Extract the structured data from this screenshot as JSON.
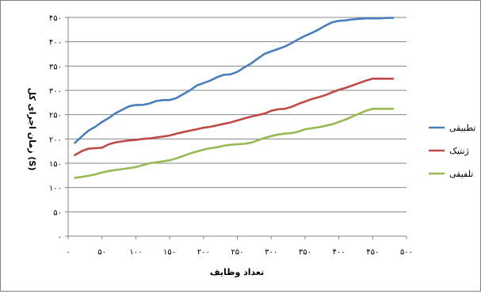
{
  "chart_data": {
    "type": "line",
    "xlabel": "تعداد وظایف",
    "ylabel": "زمان اجرای کل (S)",
    "xlim": [
      0,
      500
    ],
    "ylim": [
      0,
      450
    ],
    "x_ticks": [
      "۰",
      "۵۰",
      "۱۰۰",
      "۱۵۰",
      "۲۰۰",
      "۲۵۰",
      "۳۰۰",
      "۳۵۰",
      "۴۰۰",
      "۴۵۰",
      "۵۰۰"
    ],
    "y_ticks": [
      "۰",
      "۵۰",
      "۱۰۰",
      "۱۵۰",
      "۲۰۰",
      "۲۵۰",
      "۳۰۰",
      "۳۵۰",
      "۴۰۰",
      "۴۵۰"
    ],
    "grid": "horizontal",
    "legend": "right",
    "x": [
      10,
      20,
      30,
      40,
      50,
      60,
      70,
      80,
      90,
      100,
      110,
      120,
      130,
      140,
      150,
      160,
      170,
      180,
      190,
      200,
      210,
      220,
      230,
      240,
      250,
      260,
      270,
      280,
      290,
      300,
      310,
      320,
      330,
      340,
      350,
      360,
      370,
      380,
      390,
      400,
      410,
      420,
      430,
      440,
      450,
      460,
      470,
      480
    ],
    "series": [
      {
        "name": "تطبیقی",
        "color": "#4a7ebb",
        "values": [
          192,
          205,
          217,
          225,
          235,
          243,
          253,
          260,
          267,
          270,
          270,
          273,
          278,
          280,
          280,
          284,
          292,
          300,
          310,
          315,
          320,
          327,
          332,
          333,
          338,
          347,
          355,
          365,
          375,
          380,
          385,
          390,
          397,
          405,
          412,
          418,
          425,
          433,
          440,
          443,
          444,
          446,
          447,
          448,
          448,
          448,
          449,
          449
        ]
      },
      {
        "name": "ژنتیک",
        "color": "#be4b48",
        "values": [
          167,
          175,
          180,
          181,
          182,
          189,
          193,
          195,
          197,
          198,
          200,
          201,
          203,
          205,
          207,
          211,
          214,
          217,
          220,
          223,
          225,
          228,
          231,
          234,
          238,
          242,
          246,
          249,
          252,
          258,
          261,
          262,
          266,
          272,
          277,
          282,
          286,
          290,
          296,
          301,
          305,
          310,
          315,
          320,
          324,
          324,
          324,
          324
        ]
      },
      {
        "name": "تلفیقی",
        "color": "#98b954",
        "values": [
          120,
          122,
          124,
          127,
          131,
          134,
          136,
          138,
          140,
          142,
          146,
          150,
          152,
          154,
          156,
          160,
          165,
          170,
          174,
          178,
          181,
          183,
          186,
          188,
          189,
          190,
          192,
          197,
          202,
          206,
          209,
          211,
          212,
          215,
          220,
          222,
          224,
          227,
          230,
          235,
          240,
          246,
          252,
          258,
          262,
          262,
          262,
          262
        ]
      }
    ]
  }
}
